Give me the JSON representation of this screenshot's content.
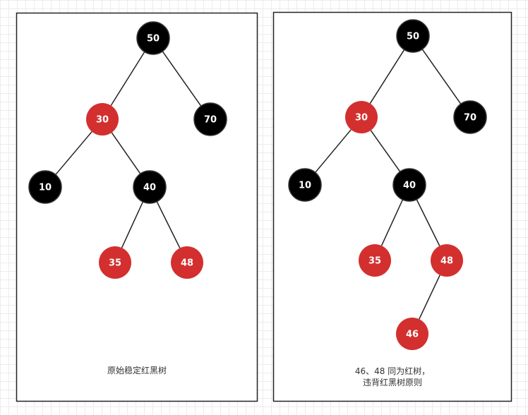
{
  "colors": {
    "black_node": "#000000",
    "red_node": "#d32f2f",
    "node_text": "#ffffff",
    "edge": "#222222",
    "frame": "#222222"
  },
  "panels": [
    {
      "caption_lines": [
        "原始稳定红黑树"
      ],
      "nodes": [
        {
          "id": "50",
          "label": "50",
          "color": "black"
        },
        {
          "id": "30",
          "label": "30",
          "color": "red"
        },
        {
          "id": "70",
          "label": "70",
          "color": "black"
        },
        {
          "id": "10",
          "label": "10",
          "color": "black"
        },
        {
          "id": "40",
          "label": "40",
          "color": "black"
        },
        {
          "id": "35",
          "label": "35",
          "color": "red"
        },
        {
          "id": "48",
          "label": "48",
          "color": "red"
        }
      ],
      "edges": [
        [
          "50",
          "30"
        ],
        [
          "50",
          "70"
        ],
        [
          "30",
          "10"
        ],
        [
          "30",
          "40"
        ],
        [
          "40",
          "35"
        ],
        [
          "40",
          "48"
        ]
      ]
    },
    {
      "caption_lines": [
        "46、48 同为红树，",
        "违背红黑树原则"
      ],
      "nodes": [
        {
          "id": "50",
          "label": "50",
          "color": "black"
        },
        {
          "id": "30",
          "label": "30",
          "color": "red"
        },
        {
          "id": "70",
          "label": "70",
          "color": "black"
        },
        {
          "id": "10",
          "label": "10",
          "color": "black"
        },
        {
          "id": "40",
          "label": "40",
          "color": "black"
        },
        {
          "id": "35",
          "label": "35",
          "color": "red"
        },
        {
          "id": "48",
          "label": "48",
          "color": "red"
        },
        {
          "id": "46",
          "label": "46",
          "color": "red"
        }
      ],
      "edges": [
        [
          "50",
          "30"
        ],
        [
          "50",
          "70"
        ],
        [
          "30",
          "10"
        ],
        [
          "30",
          "40"
        ],
        [
          "40",
          "35"
        ],
        [
          "40",
          "48"
        ],
        [
          "48",
          "46"
        ]
      ]
    }
  ]
}
